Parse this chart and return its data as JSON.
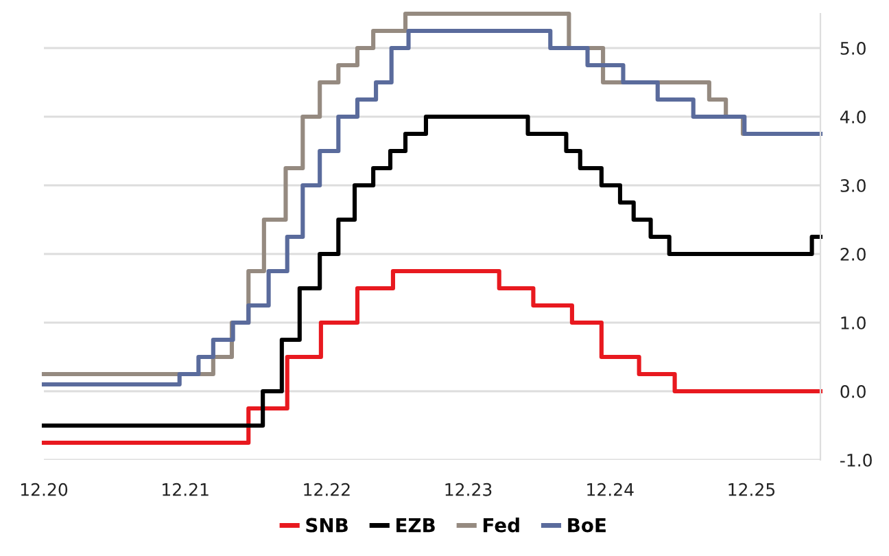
{
  "chart_data": {
    "type": "step",
    "xlim": [
      "2020-12-31",
      "2026-06-27"
    ],
    "xticks": [
      {
        "value": "2020-12-31",
        "label": "12.20"
      },
      {
        "value": "2021-12-31",
        "label": "12.21"
      },
      {
        "value": "2022-12-31",
        "label": "12.22"
      },
      {
        "value": "2023-12-31",
        "label": "12.23"
      },
      {
        "value": "2024-12-31",
        "label": "12.24"
      },
      {
        "value": "2025-12-31",
        "label": "12.25"
      }
    ],
    "ylim": [
      -1,
      5.5
    ],
    "yticks": [
      {
        "value": -1,
        "label": "-1.0"
      },
      {
        "value": 0,
        "label": "0.0"
      },
      {
        "value": 1,
        "label": "1.0"
      },
      {
        "value": 2,
        "label": "2.0"
      },
      {
        "value": 3,
        "label": "3.0"
      },
      {
        "value": 4,
        "label": "4.0"
      },
      {
        "value": 5,
        "label": "5.0"
      }
    ],
    "grid": "y",
    "legend": "bottom",
    "line_style": "solid",
    "series": [
      {
        "name": "SNB",
        "color": "#e8191f",
        "x": [
          "2020-12-31",
          "2022-06-12",
          "2022-09-20",
          "2022-12-16",
          "2023-03-20",
          "2023-06-20",
          "2024-03-20",
          "2024-06-16",
          "2024-09-24",
          "2024-12-09",
          "2025-03-16",
          "2025-06-16",
          "2026-06-27"
        ],
        "values": [
          -0.75,
          -0.25,
          0.5,
          1.0,
          1.5,
          1.75,
          1.5,
          1.25,
          1.0,
          0.5,
          0.25,
          0.0,
          0.0
        ]
      },
      {
        "name": "EZB",
        "color": "#000000",
        "x": [
          "2020-12-31",
          "2022-07-19",
          "2022-09-06",
          "2022-10-22",
          "2022-12-13",
          "2023-01-30",
          "2023-03-13",
          "2023-04-30",
          "2023-06-13",
          "2023-07-22",
          "2023-09-13",
          "2024-06-02",
          "2024-09-09",
          "2024-10-15",
          "2024-12-09",
          "2025-01-26",
          "2025-03-02",
          "2025-04-15",
          "2025-06-02",
          "2026-06-05",
          "2026-06-27"
        ],
        "values": [
          -0.5,
          0.0,
          0.75,
          1.5,
          2.0,
          2.5,
          3.0,
          3.25,
          3.5,
          3.75,
          4.0,
          3.75,
          3.5,
          3.25,
          3.0,
          2.75,
          2.5,
          2.25,
          2.0,
          2.25,
          2.25
        ]
      },
      {
        "name": "Fed",
        "color": "#958a80",
        "x": [
          "2020-12-31",
          "2022-03-13",
          "2022-04-30",
          "2022-06-12",
          "2022-07-22",
          "2022-09-16",
          "2022-10-30",
          "2022-12-13",
          "2023-01-30",
          "2023-03-20",
          "2023-04-30",
          "2023-07-22",
          "2024-09-16",
          "2024-12-13",
          "2025-09-13",
          "2025-10-26",
          "2025-12-09",
          "2026-06-27"
        ],
        "values": [
          0.25,
          0.5,
          1.0,
          1.75,
          2.5,
          3.25,
          4.0,
          4.5,
          4.75,
          5.0,
          5.25,
          5.5,
          5.0,
          4.5,
          4.25,
          4.0,
          3.75,
          3.75
        ]
      },
      {
        "name": "BoE",
        "color": "#5a6b9c",
        "x": [
          "2020-12-31",
          "2021-12-16",
          "2022-02-03",
          "2022-03-13",
          "2022-05-03",
          "2022-06-12",
          "2022-08-03",
          "2022-09-20",
          "2022-10-30",
          "2022-12-13",
          "2023-01-30",
          "2023-03-20",
          "2023-05-07",
          "2023-06-16",
          "2023-07-30",
          "2024-07-30",
          "2024-11-03",
          "2025-02-03",
          "2025-05-03",
          "2025-08-03",
          "2025-12-13",
          "2026-06-27"
        ],
        "values": [
          0.1,
          0.25,
          0.5,
          0.75,
          1.0,
          1.25,
          1.75,
          2.25,
          3.0,
          3.5,
          4.0,
          4.25,
          4.5,
          5.0,
          5.25,
          5.0,
          4.75,
          4.5,
          4.25,
          4.0,
          3.75,
          3.75
        ]
      }
    ]
  }
}
